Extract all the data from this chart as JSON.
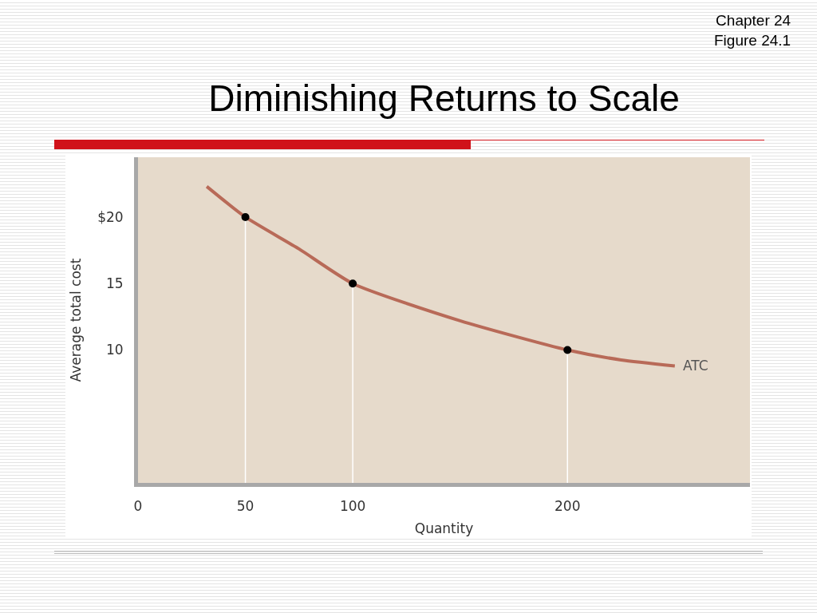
{
  "chart_data": {
    "type": "line",
    "title": "Diminishing Returns to Scale",
    "xlabel": "Quantity",
    "ylabel": "Average total cost",
    "annotations": [
      "Chapter 24\nFigure 24.1"
    ],
    "series": [
      {
        "name": "ATC",
        "color": "#b86a58",
        "marker": "none",
        "x": [
          32,
          50,
          75,
          100,
          150,
          200,
          225,
          250
        ],
        "values": [
          22.3,
          20,
          17.6,
          15,
          12.2,
          10,
          9.25,
          8.8
        ]
      },
      {
        "type": "scatter",
        "color": "#000000",
        "marker": "circle",
        "x": [
          50,
          100,
          200
        ],
        "values": [
          20,
          15,
          10
        ]
      }
    ],
    "ref_lines": [
      {
        "axis": "x",
        "value": 50,
        "color": "#ffffff"
      },
      {
        "axis": "x",
        "value": 100,
        "color": "#ffffff"
      },
      {
        "axis": "x",
        "value": 200,
        "color": "#ffffff"
      }
    ],
    "xlim": [
      0,
      285
    ],
    "xticks": [
      0,
      50,
      100,
      200
    ],
    "ylim": [
      0,
      24.5
    ],
    "yticks": [
      10,
      15,
      {
        "value": 20,
        "label": "$20"
      }
    ],
    "grid": false,
    "legend": false
  }
}
